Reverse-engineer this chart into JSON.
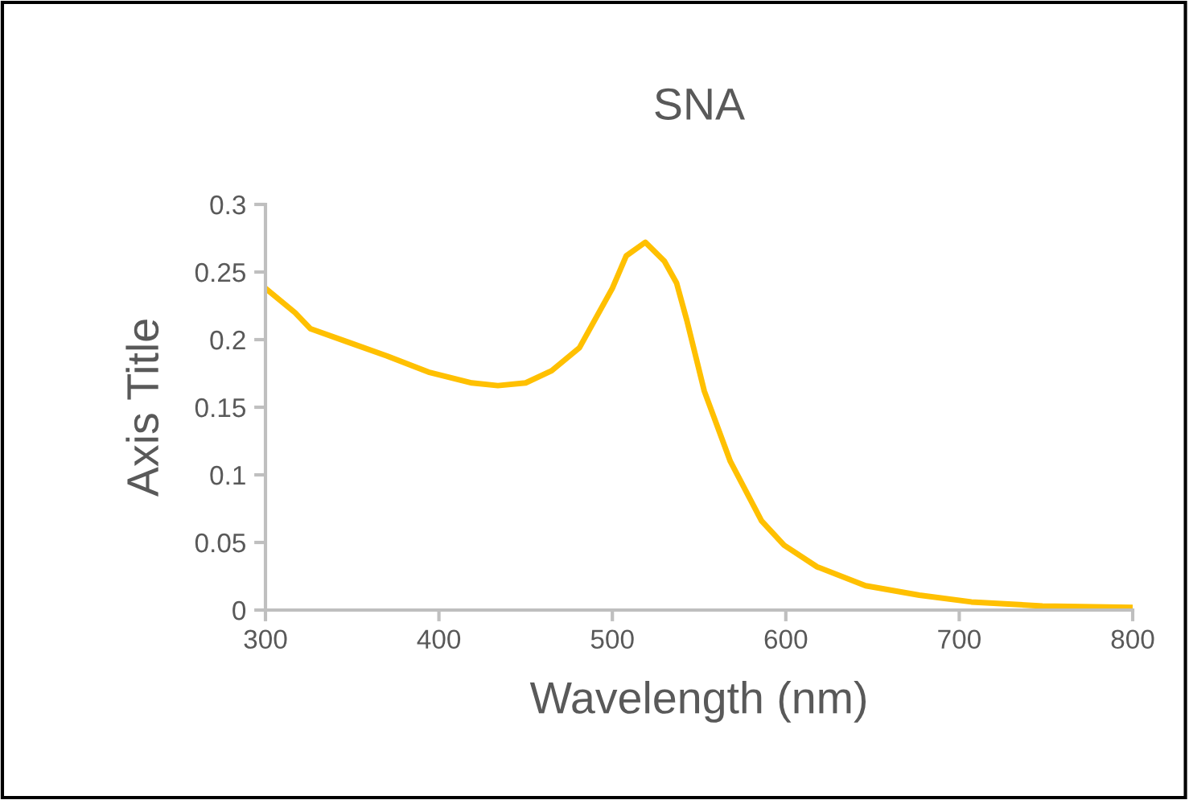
{
  "chart_data": {
    "type": "line",
    "title": "SNA",
    "xlabel": "Wavelength (nm)",
    "ylabel": "Axis Title",
    "x": [
      300,
      317,
      326,
      348,
      370,
      394,
      419,
      434,
      450,
      465,
      481,
      500,
      508,
      519,
      530,
      537,
      543,
      553,
      568,
      586,
      599,
      618,
      646,
      677,
      707,
      748,
      799
    ],
    "series": [
      {
        "color": "#ffc000",
        "values": [
          0.238,
          0.22,
          0.208,
          0.198,
          0.188,
          0.176,
          0.168,
          0.166,
          0.168,
          0.177,
          0.194,
          0.238,
          0.262,
          0.272,
          0.258,
          0.242,
          0.214,
          0.162,
          0.11,
          0.066,
          0.048,
          0.032,
          0.018,
          0.011,
          0.006,
          0.003,
          0.002
        ]
      }
    ],
    "xlim": [
      300,
      800
    ],
    "xticks": [
      300,
      400,
      500,
      600,
      700,
      800
    ],
    "ylim": [
      0,
      0.3
    ],
    "yticks": [
      0,
      0.05,
      0.1,
      0.15,
      0.2,
      0.25,
      0.3
    ],
    "grid": false,
    "marker": "none",
    "line_style": "solid"
  }
}
